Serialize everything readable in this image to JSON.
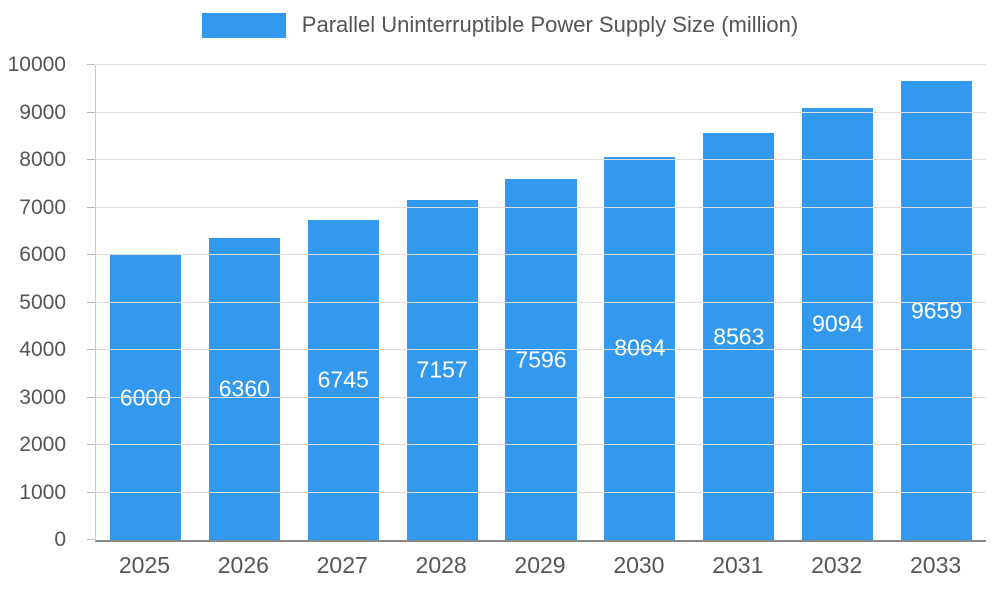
{
  "legend": {
    "title": "Parallel Uninterruptible Power Supply Size (million)"
  },
  "chart_data": {
    "type": "bar",
    "title": "Parallel Uninterruptible Power Supply Size (million)",
    "categories": [
      "2025",
      "2026",
      "2027",
      "2028",
      "2029",
      "2030",
      "2031",
      "2032",
      "2033"
    ],
    "values": [
      6000,
      6360,
      6745,
      7157,
      7596,
      8064,
      8563,
      9094,
      9659
    ],
    "xlabel": "",
    "ylabel": "",
    "ylim": [
      0,
      10000
    ],
    "y_ticks": [
      0,
      1000,
      2000,
      3000,
      4000,
      5000,
      6000,
      7000,
      8000,
      9000,
      10000
    ],
    "grid": true,
    "legend_position": "top",
    "bar_color": "#3399ee",
    "value_label_color": "#ffffff",
    "axis_text_color": "#555555",
    "gridline_color": "#dddddd"
  }
}
